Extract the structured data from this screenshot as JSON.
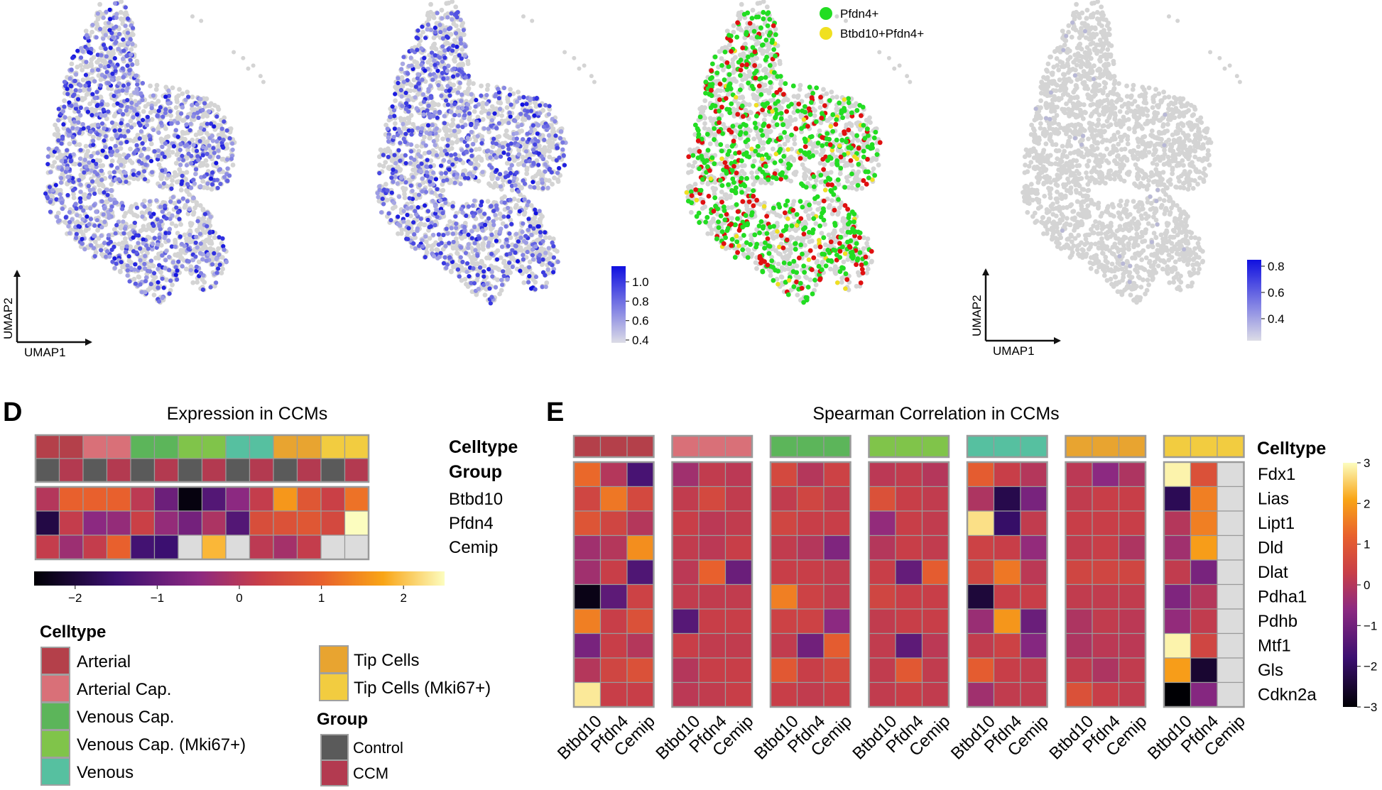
{
  "colors": {
    "dot_grey": "#d4d4d4",
    "expr_high": "#1010e0",
    "expr_low": "#dcdce6",
    "red": "#e01010",
    "green": "#22dd22",
    "yellow": "#f0e020",
    "cell_border": "#9a9a9a",
    "arrow": "#111111"
  },
  "palette": {
    "celltype": {
      "Arterial": "#b4404a",
      "Arterial Cap.": "#d97078",
      "Venous Cap.": "#5cb55a",
      "Venous Cap. (Mki67+)": "#80c44a",
      "Venous": "#56c0a0",
      "Tip Cells": "#e8a430",
      "Tip Cells (Mki67+)": "#f2cc40"
    },
    "group": {
      "Control": "#5a5a5a",
      "CCM": "#b33a50"
    },
    "na_cell": "#dcdcdc"
  },
  "umap": {
    "axis_x": "UMAP1",
    "axis_y": "UMAP2",
    "legend_c": {
      "items": [
        {
          "label": "Pfdn4+",
          "color": "#22dd22"
        },
        {
          "label": "Btbd10+Pfdn4+",
          "color": "#f0e020"
        }
      ]
    },
    "colorbar1": {
      "ticks": [
        "1.0",
        "0.8",
        "0.6",
        "0.4"
      ]
    },
    "colorbar2": {
      "ticks": [
        "0.8",
        "0.6",
        "0.4"
      ]
    }
  },
  "panel_d": {
    "letter": "D",
    "title": "Expression in CCMs",
    "annotation_labels": [
      "Celltype",
      "Group"
    ],
    "legend_celltype_title": "Celltype",
    "legend_group_title": "Group",
    "celltype_legend_left": [
      "Arterial",
      "Arterial Cap.",
      "Venous Cap.",
      "Venous Cap. (Mki67+)",
      "Venous"
    ],
    "celltype_legend_right": [
      "Tip Cells",
      "Tip Cells (Mki67+)"
    ],
    "group_legend": [
      "Control",
      "CCM"
    ],
    "colorbar_ticks": [
      "−2",
      "−1",
      "0",
      "1",
      "2"
    ]
  },
  "panel_e": {
    "letter": "E",
    "title": "Spearman Correlation in CCMs",
    "annotation_label": "Celltype",
    "colorbar_ticks": [
      "3",
      "2",
      "1",
      "0",
      "−1",
      "−2",
      "−3"
    ]
  },
  "chart_data": [
    {
      "type": "scatter",
      "panel": "UMAP expression plot 1",
      "xlabel": "UMAP1",
      "ylabel": "UMAP2",
      "legend": "colorbar, not labeled",
      "values": "per-cell expression (blue intensity), 0.4 to 1.0"
    },
    {
      "type": "scatter",
      "panel": "UMAP expression plot 2",
      "colorbar": {
        "range": [
          0.4,
          1.0
        ],
        "ticks": [
          1.0,
          0.8,
          0.6,
          0.4
        ]
      }
    },
    {
      "type": "scatter",
      "panel": "UMAP co-expression plot",
      "legend": [
        "Pfdn4+",
        "Btbd10+Pfdn4+"
      ],
      "note": "red, green and yellow cells over grey background"
    },
    {
      "type": "scatter",
      "panel": "UMAP expression plot 4",
      "xlabel": "UMAP1",
      "ylabel": "UMAP2",
      "colorbar": {
        "range": [
          0.4,
          0.8
        ],
        "ticks": [
          0.8,
          0.6,
          0.4
        ]
      }
    },
    {
      "type": "heatmap",
      "title": "Expression in CCMs",
      "rows": [
        "Btbd10",
        "Pfdn4",
        "Cemip"
      ],
      "columns_celltype": [
        "Arterial",
        "Arterial",
        "Arterial Cap.",
        "Arterial Cap.",
        "Venous Cap.",
        "Venous Cap.",
        "Venous Cap. (Mki67+)",
        "Venous Cap. (Mki67+)",
        "Venous",
        "Venous",
        "Tip Cells",
        "Tip Cells",
        "Tip Cells (Mki67+)",
        "Tip Cells (Mki67+)"
      ],
      "columns_group": [
        "Control",
        "CCM",
        "Control",
        "CCM",
        "Control",
        "CCM",
        "Control",
        "CCM",
        "Control",
        "CCM",
        "Control",
        "CCM",
        "Control",
        "CCM"
      ],
      "values": [
        [
          0.0,
          1.0,
          1.0,
          1.0,
          0.1,
          -0.9,
          -2.4,
          -1.2,
          -0.5,
          0.2,
          1.6,
          0.8,
          0.3,
          1.2
        ],
        [
          -1.9,
          0.2,
          -0.5,
          -0.4,
          0.3,
          -0.4,
          -0.8,
          -0.1,
          -1.2,
          0.6,
          0.7,
          0.8,
          0.5,
          2.5
        ],
        [
          0.2,
          -0.3,
          0.2,
          1.0,
          -1.4,
          -1.5,
          null,
          1.9,
          null,
          0.1,
          -0.2,
          0.2,
          null,
          null
        ]
      ],
      "colorbar": {
        "range": [
          -2.5,
          2.5
        ],
        "ticks": [
          -2,
          -1,
          0,
          1,
          2
        ]
      }
    },
    {
      "type": "heatmap",
      "title": "Spearman Correlation in CCMs",
      "rows": [
        "Fdx1",
        "Lias",
        "Lipt1",
        "Dld",
        "Dlat",
        "Pdha1",
        "Pdhb",
        "Mtf1",
        "Gls",
        "Cdkn2a"
      ],
      "columns": [
        "Btbd10",
        "Pfdn4",
        "Cemip"
      ],
      "blocks": [
        {
          "celltype": "Arterial",
          "values": [
            [
              1.3,
              0.0,
              -1.6
            ],
            [
              0.5,
              1.5,
              0.6
            ],
            [
              0.9,
              0.5,
              0.0
            ],
            [
              -0.3,
              0.0,
              1.8
            ],
            [
              -0.3,
              0.3,
              -1.5
            ],
            [
              -2.8,
              -1.3,
              0.4
            ],
            [
              1.6,
              0.3,
              0.8
            ],
            [
              -0.9,
              0.3,
              0.0
            ],
            [
              0.0,
              0.5,
              0.8
            ],
            [
              2.8,
              0.3,
              0.3
            ]
          ]
        },
        {
          "celltype": "Arterial Cap.",
          "values": [
            [
              -0.3,
              0.2,
              0.1
            ],
            [
              0.2,
              0.6,
              0.2
            ],
            [
              0.3,
              0.1,
              0.2
            ],
            [
              0.2,
              0.1,
              0.3
            ],
            [
              0.1,
              1.2,
              -1.1
            ],
            [
              0.2,
              0.2,
              0.2
            ],
            [
              -1.4,
              0.3,
              0.3
            ],
            [
              0.3,
              0.2,
              0.2
            ],
            [
              0.0,
              0.3,
              0.3
            ],
            [
              0.1,
              0.2,
              0.3
            ]
          ]
        },
        {
          "celltype": "Venous Cap.",
          "values": [
            [
              0.6,
              0.0,
              0.4
            ],
            [
              0.2,
              0.5,
              0.2
            ],
            [
              0.5,
              0.3,
              0.3
            ],
            [
              0.2,
              0.0,
              -0.8
            ],
            [
              0.3,
              0.3,
              0.2
            ],
            [
              1.6,
              0.4,
              0.2
            ],
            [
              0.4,
              0.4,
              -0.6
            ],
            [
              0.2,
              -1.0,
              1.1
            ],
            [
              1.0,
              0.3,
              0.6
            ],
            [
              0.3,
              0.2,
              0.3
            ]
          ]
        },
        {
          "celltype": "Venous Cap. (Mki67+)",
          "values": [
            [
              0.1,
              0.2,
              0.0
            ],
            [
              0.8,
              0.3,
              0.2
            ],
            [
              -0.5,
              0.3,
              0.2
            ],
            [
              0.0,
              0.3,
              0.2
            ],
            [
              0.3,
              -1.2,
              1.1
            ],
            [
              0.5,
              0.3,
              0.3
            ],
            [
              0.2,
              0.3,
              0.3
            ],
            [
              0.2,
              -1.3,
              0.1
            ],
            [
              0.2,
              1.0,
              0.2
            ],
            [
              0.2,
              0.3,
              0.2
            ]
          ]
        },
        {
          "celltype": "Venous",
          "values": [
            [
              1.1,
              0.3,
              0.0
            ],
            [
              -0.1,
              -2.2,
              -0.9
            ],
            [
              2.7,
              -1.9,
              0.2
            ],
            [
              0.4,
              0.3,
              -0.5
            ],
            [
              0.5,
              1.5,
              0.1
            ],
            [
              -2.4,
              0.3,
              0.3
            ],
            [
              -0.4,
              1.9,
              -1.1
            ],
            [
              0.2,
              0.4,
              -0.7
            ],
            [
              1.1,
              0.3,
              0.2
            ],
            [
              -0.3,
              0.2,
              0.2
            ]
          ]
        },
        {
          "celltype": "Tip Cells",
          "values": [
            [
              0.1,
              -0.6,
              -0.1
            ],
            [
              0.2,
              0.3,
              0.3
            ],
            [
              0.3,
              0.3,
              0.3
            ],
            [
              0.2,
              0.3,
              -0.1
            ],
            [
              0.5,
              0.5,
              0.5
            ],
            [
              0.2,
              0.2,
              0.2
            ],
            [
              -0.1,
              0.2,
              0.1
            ],
            [
              -0.1,
              0.1,
              0.1
            ],
            [
              0.2,
              -0.1,
              0.2
            ],
            [
              0.8,
              0.3,
              0.2
            ]
          ]
        },
        {
          "celltype": "Tip Cells (Mki67+)",
          "values": [
            [
              2.9,
              0.8,
              null
            ],
            [
              -2.1,
              1.6,
              null
            ],
            [
              0.0,
              1.6,
              null
            ],
            [
              -0.3,
              2.0,
              null
            ],
            [
              0.2,
              -0.9,
              null
            ],
            [
              -0.8,
              0.0,
              null
            ],
            [
              -0.5,
              0.2,
              null
            ],
            [
              2.9,
              0.5,
              null
            ],
            [
              2.0,
              -2.5,
              null
            ],
            [
              -3.0,
              -0.7,
              null
            ]
          ]
        }
      ],
      "colorbar": {
        "range": [
          -3,
          3
        ],
        "ticks": [
          3,
          2,
          1,
          0,
          -1,
          -2,
          -3
        ]
      }
    }
  ]
}
